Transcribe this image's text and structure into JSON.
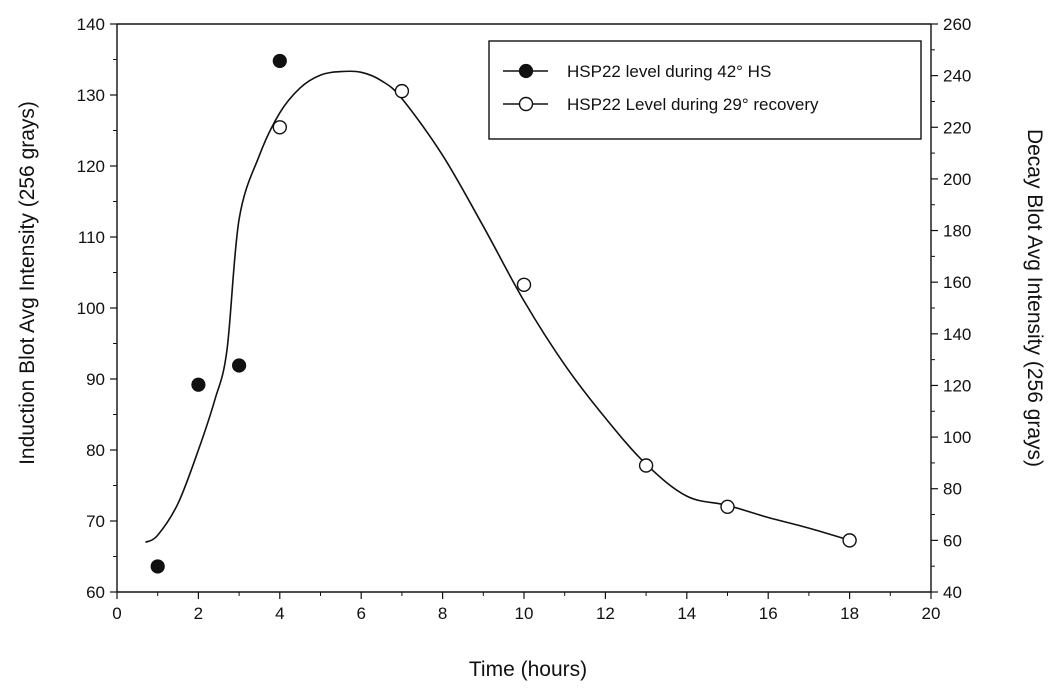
{
  "chart_data": {
    "type": "scatter",
    "title": "",
    "xlabel": "Time (hours)",
    "ylabel_left": "Induction Blot Avg Intensity (256 grays)",
    "ylabel_right": "Decay Blot Avg Intensity (256 grays)",
    "xlim": [
      0,
      20
    ],
    "ylim_left": [
      60,
      140
    ],
    "ylim_right": [
      40,
      260
    ],
    "x_ticks": [
      0,
      2,
      4,
      6,
      8,
      10,
      12,
      14,
      16,
      18,
      20
    ],
    "y_left_ticks": [
      60,
      70,
      80,
      90,
      100,
      110,
      120,
      130,
      140
    ],
    "y_right_ticks": [
      40,
      60,
      80,
      100,
      120,
      140,
      160,
      180,
      200,
      220,
      240,
      260
    ],
    "grid": false,
    "legend_position": "top-right",
    "series": [
      {
        "name": "HSP22 level during 42° HS",
        "marker": "filled-circle",
        "axis": "left",
        "x": [
          1,
          2,
          3,
          4
        ],
        "y": [
          63.6,
          89.2,
          91.9,
          134.8
        ]
      },
      {
        "name": "HSP22 Level during 29° recovery",
        "marker": "open-circle",
        "axis": "right",
        "x": [
          4,
          7,
          10,
          13,
          15,
          18
        ],
        "y": [
          220,
          234,
          159,
          89,
          73,
          60
        ]
      }
    ],
    "fit_curve": {
      "axis": "left",
      "x": [
        0.7,
        1,
        1.5,
        2,
        2.4,
        2.7,
        3,
        3.5,
        4,
        4.5,
        5,
        5.5,
        6,
        6.5,
        7,
        8,
        9,
        10,
        11,
        12,
        13,
        14,
        15,
        16,
        17,
        18
      ],
      "y": [
        67,
        68,
        72.5,
        80,
        87,
        94,
        112.5,
        121.5,
        127.5,
        131,
        132.8,
        133.3,
        133.2,
        132,
        129.5,
        121.5,
        111.5,
        101,
        92,
        84.5,
        78,
        73.5,
        72.2,
        70.5,
        69,
        67.3
      ]
    }
  }
}
